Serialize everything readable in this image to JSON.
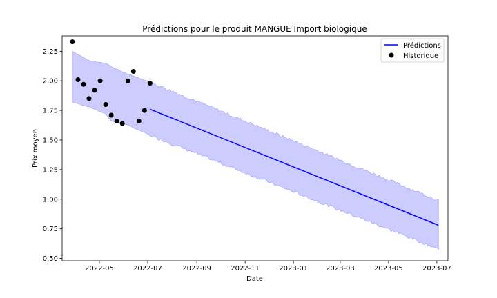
{
  "chart_data": {
    "type": "line",
    "title": "Prédictions pour le produit MANGUE Import biologique",
    "xlabel": "Date",
    "ylabel": "Prix moyen",
    "xlim": [
      "2022-03-15",
      "2023-07-15"
    ],
    "ylim": [
      0.48,
      2.38
    ],
    "x_ticks": [
      "2022-05-01",
      "2022-07-01",
      "2022-09-01",
      "2022-11-01",
      "2023-01-01",
      "2023-03-01",
      "2023-05-01",
      "2023-07-01"
    ],
    "x_tick_labels": [
      "2022-05",
      "2022-07",
      "2022-09",
      "2022-11",
      "2023-01",
      "2023-03",
      "2023-05",
      "2023-07"
    ],
    "y_ticks": [
      0.5,
      0.75,
      1.0,
      1.25,
      1.5,
      1.75,
      2.0,
      2.25
    ],
    "y_tick_labels": [
      "0.50",
      "0.75",
      "1.00",
      "1.25",
      "1.50",
      "1.75",
      "2.00",
      "2.25"
    ],
    "grid": false,
    "legend_position": "top-right",
    "colors": {
      "prediction_line": "#0000ff",
      "interval_fill": "#ccccff",
      "interval_edge": "#9999ff",
      "historique_marker": "#000000"
    },
    "series": [
      {
        "name": "Prédictions",
        "kind": "line",
        "x": [
          "2022-07-04",
          "2023-07-03"
        ],
        "y": [
          1.76,
          0.78
        ]
      },
      {
        "name": "Historique",
        "kind": "scatter",
        "x": [
          "2022-03-28",
          "2022-04-04",
          "2022-04-11",
          "2022-04-18",
          "2022-04-25",
          "2022-05-02",
          "2022-05-09",
          "2022-05-16",
          "2022-05-23",
          "2022-05-30",
          "2022-06-06",
          "2022-06-13",
          "2022-06-20",
          "2022-06-27",
          "2022-07-04"
        ],
        "y": [
          2.33,
          2.01,
          1.97,
          1.85,
          1.92,
          2.0,
          1.8,
          1.71,
          1.66,
          1.64,
          2.0,
          2.08,
          1.66,
          1.75,
          1.98
        ]
      }
    ],
    "interval": {
      "x": [
        "2022-03-28",
        "2022-04-18",
        "2022-05-09",
        "2022-05-16",
        "2022-06-01",
        "2022-07-04",
        "2023-07-03"
      ],
      "upper": [
        2.25,
        2.17,
        2.15,
        2.12,
        2.07,
        1.99,
        0.99
      ],
      "lower": [
        1.82,
        1.78,
        1.72,
        1.66,
        1.64,
        1.54,
        0.58
      ]
    }
  }
}
